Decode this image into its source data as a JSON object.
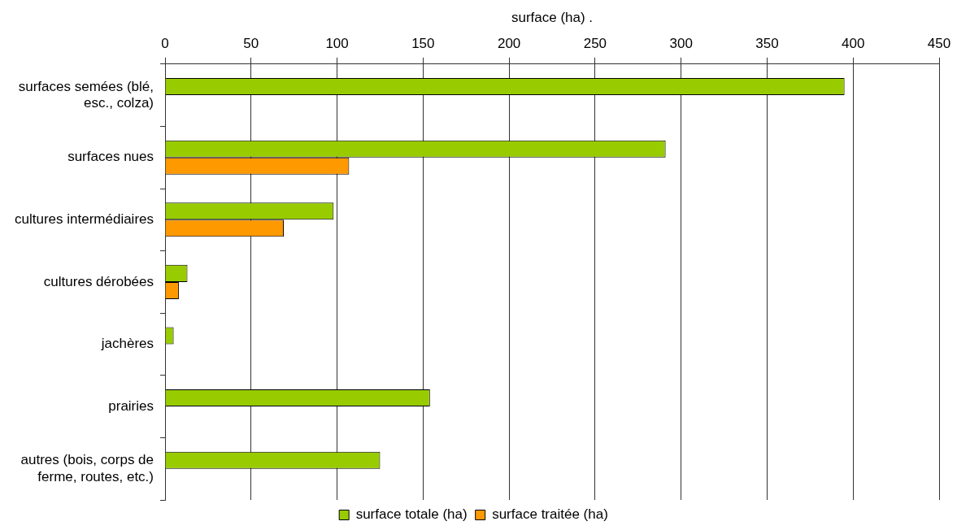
{
  "chart_data": {
    "type": "bar",
    "orientation": "horizontal",
    "xlabel": "surface (ha) .",
    "categories": [
      "surfaces semées (blé, esc., colza)",
      "surfaces nues",
      "cultures intermédiaires",
      "cultures dérobées",
      "jachères",
      "prairies",
      "autres (bois, corps de ferme, routes, etc.)"
    ],
    "series": [
      {
        "name": "surface totale (ha)",
        "color": "#99cc00",
        "values": [
          395,
          291,
          98,
          13,
          5,
          154,
          125
        ]
      },
      {
        "name": "surface traitée (ha)",
        "color": "#ff9900",
        "values": [
          null,
          107,
          69,
          8,
          null,
          null,
          null
        ]
      }
    ],
    "xlim": [
      0,
      450
    ],
    "xticks": [
      0,
      50,
      100,
      150,
      200,
      250,
      300,
      350,
      400,
      450
    ],
    "grid": "x",
    "legend": "bottom"
  }
}
